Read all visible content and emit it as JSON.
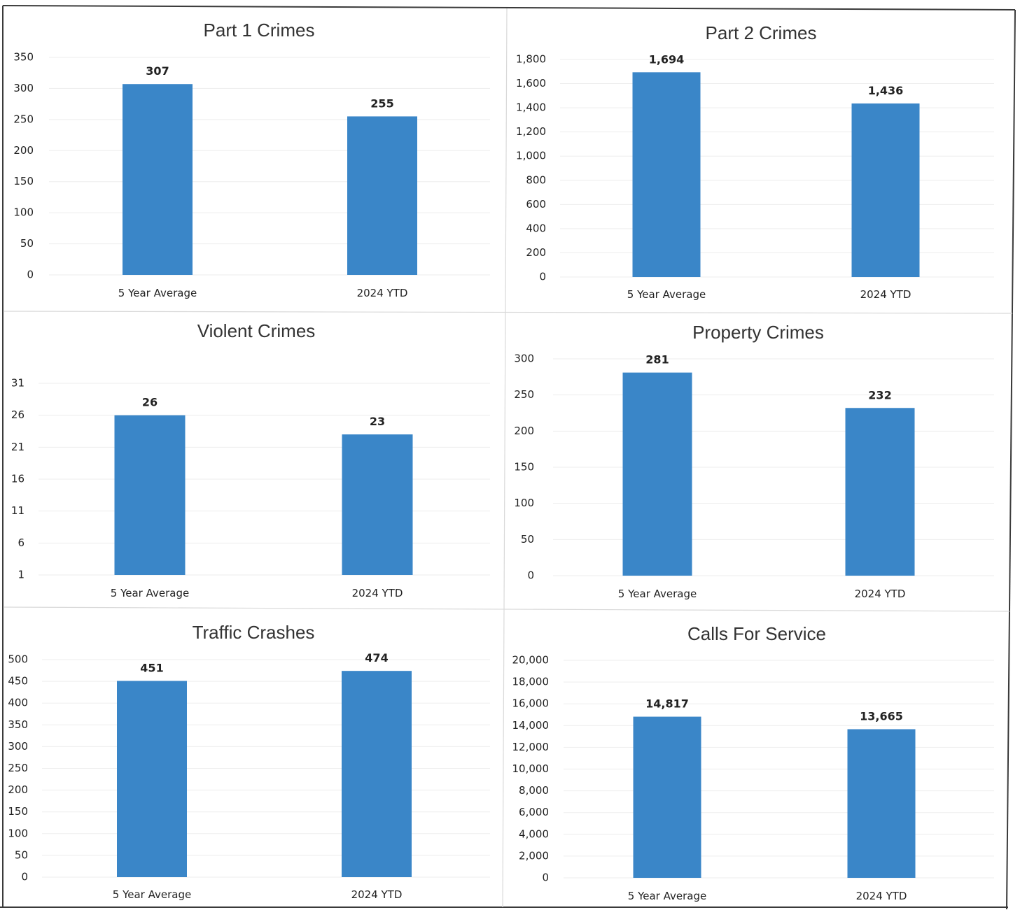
{
  "colors": {
    "bar": "#3a86c8",
    "text": "#222222",
    "frame": "#3a3a3a"
  },
  "chart_data": [
    {
      "type": "bar",
      "title": "Part 1 Crimes",
      "categories": [
        "5 Year Average",
        "2024 YTD"
      ],
      "values": [
        307,
        255
      ],
      "value_labels": [
        "307",
        "255"
      ],
      "ylim": [
        0,
        350
      ],
      "yticks": [
        0,
        50,
        100,
        150,
        200,
        250,
        300,
        350
      ],
      "ytick_labels": [
        "0",
        "50",
        "100",
        "150",
        "200",
        "250",
        "300",
        "350"
      ],
      "xlabel": "",
      "ylabel": "",
      "grid": true,
      "legend": "none"
    },
    {
      "type": "bar",
      "title": "Part 2 Crimes",
      "categories": [
        "5 Year Average",
        "2024 YTD"
      ],
      "values": [
        1694,
        1436
      ],
      "value_labels": [
        "1,694",
        "1,436"
      ],
      "ylim": [
        0,
        1800
      ],
      "yticks": [
        0,
        200,
        400,
        600,
        800,
        1000,
        1200,
        1400,
        1600,
        1800
      ],
      "ytick_labels": [
        "0",
        "200",
        "400",
        "600",
        "800",
        "1,000",
        "1,200",
        "1,400",
        "1,600",
        "1,800"
      ],
      "xlabel": "",
      "ylabel": "",
      "grid": true,
      "legend": "none"
    },
    {
      "type": "bar",
      "title": "Violent Crimes",
      "categories": [
        "5 Year Average",
        "2024 YTD"
      ],
      "values": [
        26,
        23
      ],
      "value_labels": [
        "26",
        "23"
      ],
      "ylim": [
        1,
        31
      ],
      "yticks": [
        1,
        6,
        11,
        16,
        21,
        26,
        31
      ],
      "ytick_labels": [
        "1",
        "6",
        "11",
        "16",
        "21",
        "26",
        "31"
      ],
      "xlabel": "",
      "ylabel": "",
      "grid": true,
      "legend": "none"
    },
    {
      "type": "bar",
      "title": "Property Crimes",
      "categories": [
        "5 Year Average",
        "2024 YTD"
      ],
      "values": [
        281,
        232
      ],
      "value_labels": [
        "281",
        "232"
      ],
      "ylim": [
        0,
        300
      ],
      "yticks": [
        0,
        50,
        100,
        150,
        200,
        250,
        300
      ],
      "ytick_labels": [
        "0",
        "50",
        "100",
        "150",
        "200",
        "250",
        "300"
      ],
      "xlabel": "",
      "ylabel": "",
      "grid": true,
      "legend": "none"
    },
    {
      "type": "bar",
      "title": "Traffic Crashes",
      "categories": [
        "5 Year Average",
        "2024 YTD"
      ],
      "values": [
        451,
        474
      ],
      "value_labels": [
        "451",
        "474"
      ],
      "ylim": [
        0,
        500
      ],
      "yticks": [
        0,
        50,
        100,
        150,
        200,
        250,
        300,
        350,
        400,
        450,
        500
      ],
      "ytick_labels": [
        "0",
        "50",
        "100",
        "150",
        "200",
        "250",
        "300",
        "350",
        "400",
        "450",
        "500"
      ],
      "xlabel": "",
      "ylabel": "",
      "grid": true,
      "legend": "none"
    },
    {
      "type": "bar",
      "title": "Calls For Service",
      "categories": [
        "5 Year Average",
        "2024 YTD"
      ],
      "values": [
        14817,
        13665
      ],
      "value_labels": [
        "14,817",
        "13,665"
      ],
      "ylim": [
        0,
        20000
      ],
      "yticks": [
        0,
        2000,
        4000,
        6000,
        8000,
        10000,
        12000,
        14000,
        16000,
        18000,
        20000
      ],
      "ytick_labels": [
        "0",
        "2,000",
        "4,000",
        "6,000",
        "8,000",
        "10,000",
        "12,000",
        "14,000",
        "16,000",
        "18,000",
        "20,000"
      ],
      "xlabel": "",
      "ylabel": "",
      "grid": true,
      "legend": "none"
    }
  ]
}
